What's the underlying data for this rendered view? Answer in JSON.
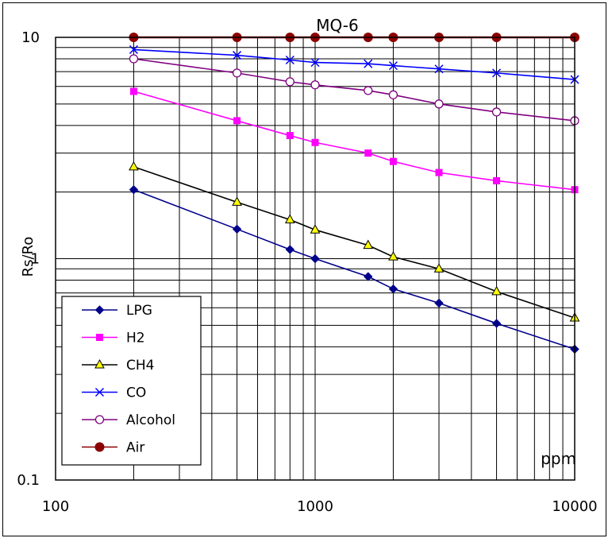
{
  "chart_data": {
    "type": "line",
    "title": "MQ-6",
    "xlabel": "ppm",
    "ylabel": "Rs/Ro",
    "xscale": "log",
    "yscale": "log",
    "xlim": [
      100,
      10000
    ],
    "ylim": [
      0.1,
      10
    ],
    "x_ticks": [
      {
        "v": 100,
        "label": "100"
      },
      {
        "v": 1000,
        "label": "1000"
      },
      {
        "v": 10000,
        "label": "10000"
      }
    ],
    "y_ticks": [
      {
        "v": 0.1,
        "label": "0.1"
      },
      {
        "v": 1,
        "label": "1"
      },
      {
        "v": 10,
        "label": "10"
      }
    ],
    "grid": true,
    "legend_position": "bottom-left",
    "series": [
      {
        "name": "LPG",
        "color": "#00008b",
        "marker": "diamond",
        "points": [
          [
            200,
            2.05
          ],
          [
            500,
            1.36
          ],
          [
            800,
            1.1
          ],
          [
            1000,
            1.0
          ],
          [
            1600,
            0.83
          ],
          [
            2000,
            0.73
          ],
          [
            3000,
            0.63
          ],
          [
            5000,
            0.51
          ],
          [
            10000,
            0.39
          ]
        ]
      },
      {
        "name": "H2",
        "color": "#ff00ff",
        "marker": "square",
        "points": [
          [
            200,
            5.7
          ],
          [
            500,
            4.2
          ],
          [
            800,
            3.6
          ],
          [
            1000,
            3.35
          ],
          [
            1600,
            3.0
          ],
          [
            2000,
            2.75
          ],
          [
            3000,
            2.45
          ],
          [
            5000,
            2.25
          ],
          [
            10000,
            2.05
          ]
        ]
      },
      {
        "name": "CH4",
        "color": "#000000",
        "marker": "triangle",
        "points": [
          [
            200,
            2.6
          ],
          [
            500,
            1.8
          ],
          [
            800,
            1.5
          ],
          [
            1000,
            1.35
          ],
          [
            1600,
            1.15
          ],
          [
            2000,
            1.02
          ],
          [
            3000,
            0.9
          ],
          [
            5000,
            0.71
          ],
          [
            10000,
            0.54
          ]
        ]
      },
      {
        "name": "CO",
        "color": "#0000ff",
        "marker": "x",
        "points": [
          [
            200,
            8.8
          ],
          [
            500,
            8.3
          ],
          [
            800,
            7.9
          ],
          [
            1000,
            7.7
          ],
          [
            1600,
            7.6
          ],
          [
            2000,
            7.45
          ],
          [
            3000,
            7.2
          ],
          [
            5000,
            6.9
          ],
          [
            10000,
            6.45
          ]
        ]
      },
      {
        "name": "Alcohol",
        "color": "#800080",
        "marker": "circle-open",
        "points": [
          [
            200,
            8.0
          ],
          [
            500,
            6.9
          ],
          [
            800,
            6.3
          ],
          [
            1000,
            6.1
          ],
          [
            1600,
            5.75
          ],
          [
            2000,
            5.5
          ],
          [
            3000,
            5.0
          ],
          [
            5000,
            4.6
          ],
          [
            10000,
            4.2
          ]
        ]
      },
      {
        "name": "Air",
        "color": "#8b0000",
        "marker": "circle-filled",
        "points": [
          [
            200,
            10
          ],
          [
            500,
            10
          ],
          [
            800,
            10
          ],
          [
            1000,
            10
          ],
          [
            1600,
            10
          ],
          [
            2000,
            10
          ],
          [
            3000,
            10
          ],
          [
            5000,
            10
          ],
          [
            10000,
            10
          ]
        ]
      }
    ]
  }
}
